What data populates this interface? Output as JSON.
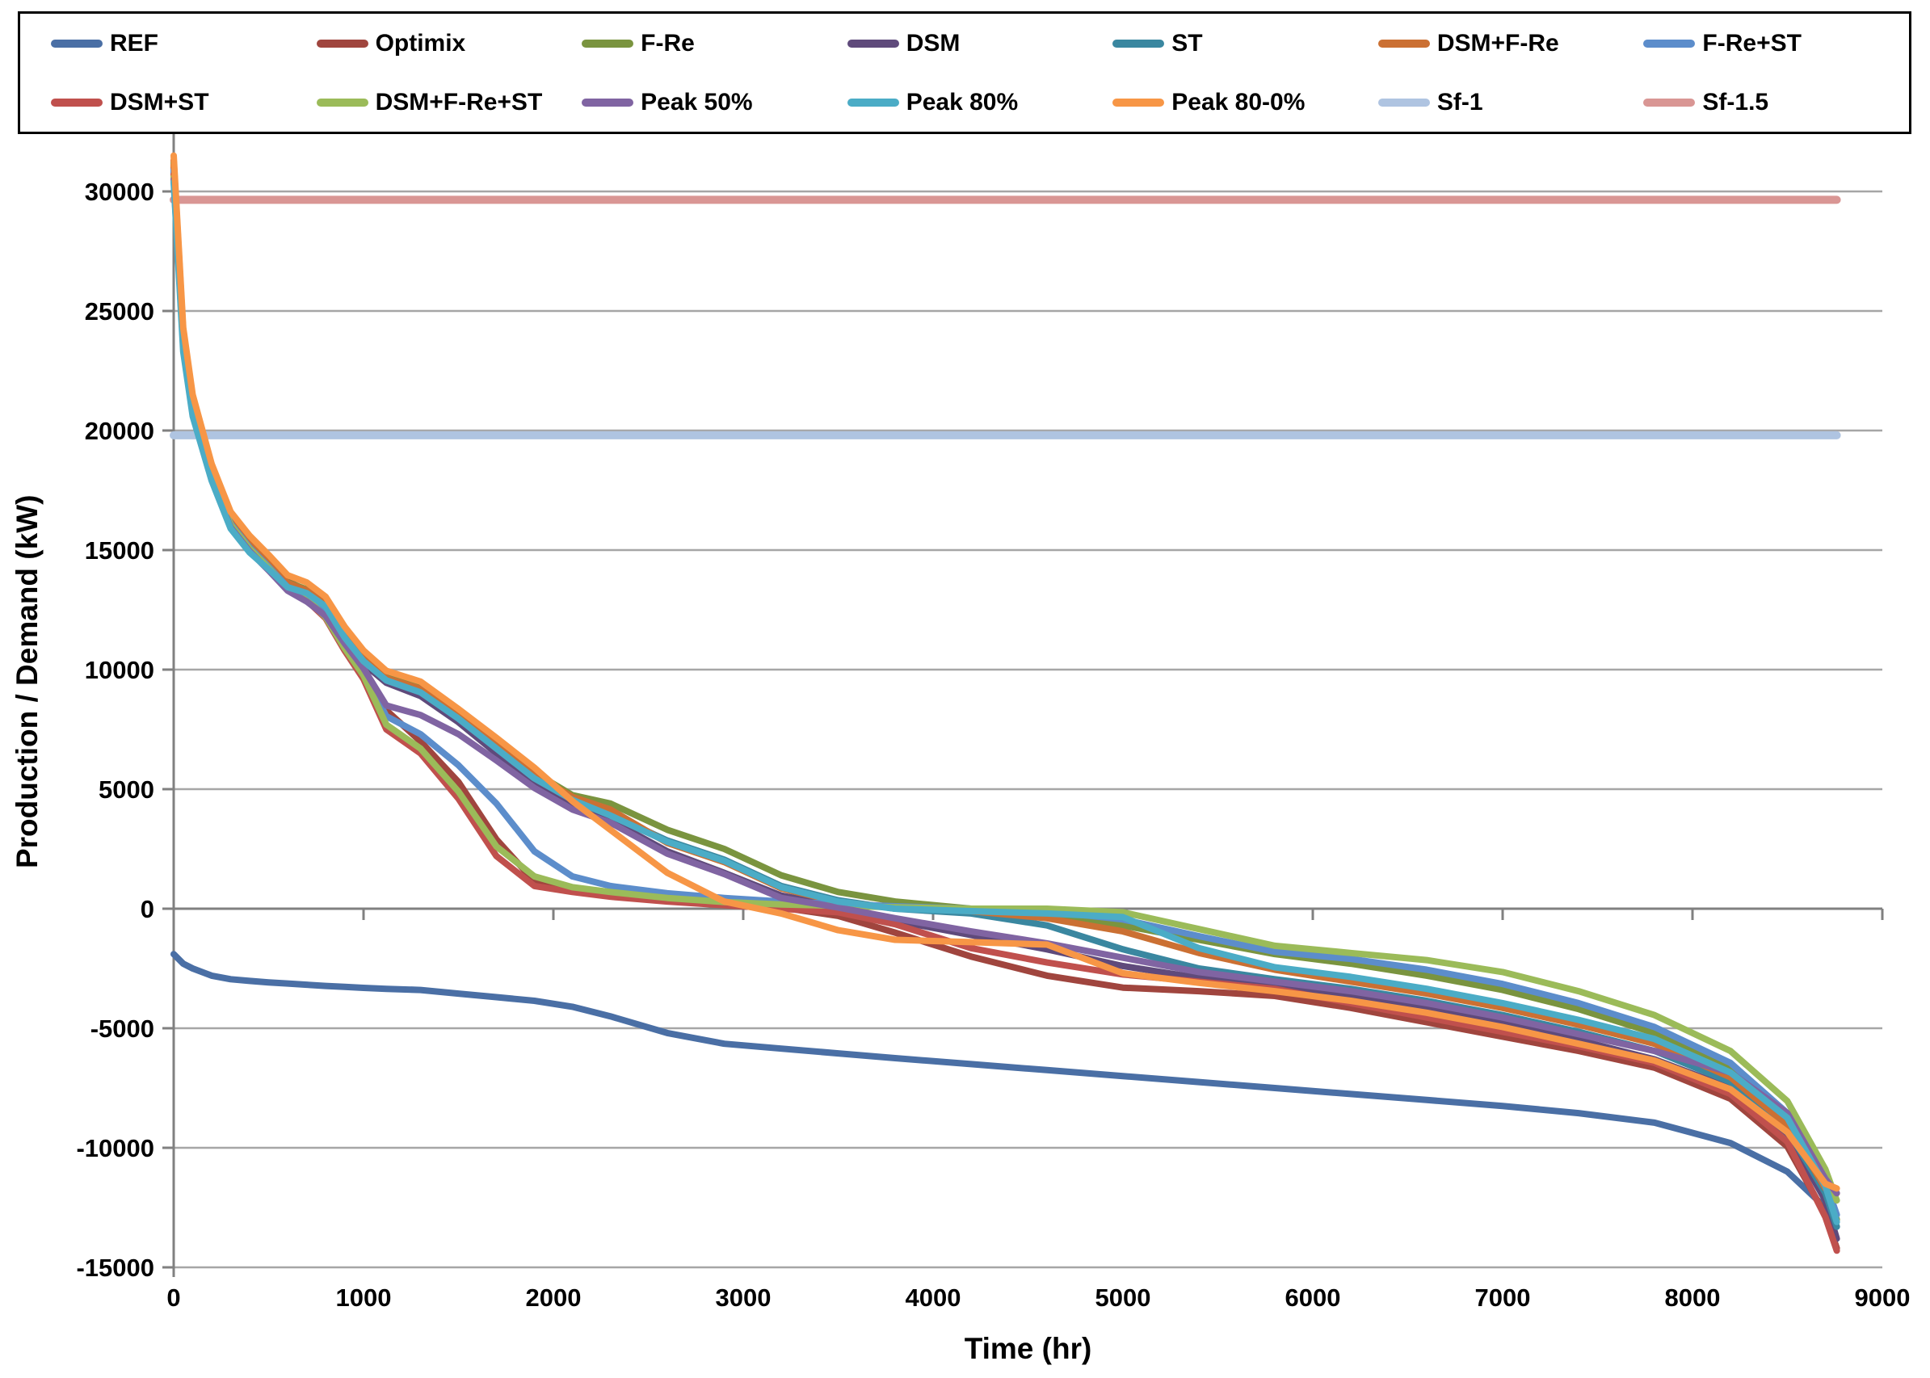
{
  "chart_data": {
    "type": "line",
    "title": "",
    "xlabel": "Time (hr)",
    "ylabel": "Production / Demand (kW)",
    "xlim": [
      0,
      9000
    ],
    "ylim": [
      -15000,
      34000
    ],
    "x_ticks": [
      0,
      1000,
      2000,
      3000,
      4000,
      5000,
      6000,
      7000,
      8000,
      9000
    ],
    "y_ticks": [
      -15000,
      -10000,
      -5000,
      0,
      5000,
      10000,
      15000,
      20000,
      25000,
      30000
    ],
    "grid": "horizontal",
    "legend_position": "top",
    "x_max_data": 8760,
    "x": [
      0,
      50,
      100,
      200,
      300,
      400,
      500,
      600,
      700,
      800,
      900,
      1000,
      1120,
      1300,
      1500,
      1700,
      1900,
      2100,
      2300,
      2600,
      2900,
      3200,
      3500,
      3800,
      4200,
      4600,
      5000,
      5400,
      5800,
      6200,
      6600,
      7000,
      7400,
      7800,
      8200,
      8500,
      8700,
      8760
    ],
    "series": [
      {
        "name": "REF",
        "color": "#4A6FA5",
        "values": [
          -1900,
          -2300,
          -2500,
          -2800,
          -2950,
          -3020,
          -3080,
          -3130,
          -3180,
          -3230,
          -3270,
          -3310,
          -3350,
          -3400,
          -3550,
          -3700,
          -3850,
          -4100,
          -4500,
          -5200,
          -5650,
          -5850,
          -6050,
          -6250,
          -6500,
          -6750,
          -7000,
          -7250,
          -7500,
          -7750,
          -8000,
          -8250,
          -8550,
          -8950,
          -9800,
          -11000,
          -12500,
          -13300
        ]
      },
      {
        "name": "Optimix",
        "color": "#A0453E",
        "values": [
          31300,
          24100,
          21300,
          18400,
          16400,
          15350,
          14550,
          13700,
          13300,
          12600,
          11200,
          10100,
          8300,
          7000,
          5300,
          2900,
          1150,
          850,
          620,
          380,
          220,
          50,
          -300,
          -1000,
          -2000,
          -2800,
          -3300,
          -3450,
          -3650,
          -4150,
          -4750,
          -5350,
          -5950,
          -6650,
          -7950,
          -9950,
          -12800,
          -14200
        ]
      },
      {
        "name": "F-Re",
        "color": "#7A943F",
        "values": [
          31200,
          24000,
          21200,
          18300,
          16300,
          15300,
          14500,
          13650,
          13350,
          12750,
          11500,
          10500,
          9750,
          9300,
          8150,
          6950,
          5700,
          4750,
          4400,
          3300,
          2500,
          1400,
          700,
          300,
          0,
          -300,
          -700,
          -1300,
          -1900,
          -2300,
          -2800,
          -3400,
          -4200,
          -5200,
          -6700,
          -8800,
          -11600,
          -13000
        ]
      },
      {
        "name": "DSM",
        "color": "#5F4A7B",
        "values": [
          31000,
          23800,
          21000,
          18150,
          16150,
          15150,
          14350,
          13500,
          13150,
          12550,
          11300,
          10250,
          9450,
          8900,
          7800,
          6500,
          5250,
          4350,
          3700,
          2400,
          1500,
          550,
          100,
          -500,
          -1100,
          -1700,
          -2400,
          -2900,
          -3200,
          -3600,
          -4200,
          -4800,
          -5500,
          -6300,
          -7500,
          -9400,
          -12200,
          -13800
        ]
      },
      {
        "name": "ST",
        "color": "#3A87A0",
        "values": [
          30800,
          23900,
          21100,
          18250,
          16250,
          15250,
          14450,
          13600,
          13300,
          12700,
          11400,
          10400,
          9600,
          9100,
          8000,
          6750,
          5500,
          4600,
          3950,
          2850,
          2050,
          950,
          350,
          0,
          -200,
          -700,
          -1700,
          -2500,
          -2950,
          -3350,
          -3850,
          -4450,
          -5150,
          -5950,
          -7250,
          -9250,
          -11900,
          -13300
        ]
      },
      {
        "name": "DSM+F-Re",
        "color": "#CB7033",
        "values": [
          31100,
          23950,
          21150,
          18280,
          16280,
          15280,
          14480,
          13630,
          13320,
          12730,
          11450,
          10450,
          9650,
          9200,
          8080,
          6850,
          5600,
          4680,
          4150,
          2750,
          1950,
          850,
          280,
          30,
          -100,
          -400,
          -950,
          -1850,
          -2550,
          -3050,
          -3550,
          -4150,
          -4850,
          -5650,
          -7050,
          -9050,
          -11700,
          -11900
        ]
      },
      {
        "name": "F-Re+ST",
        "color": "#5C8DCB",
        "values": [
          30900,
          23700,
          20900,
          18100,
          16100,
          15100,
          14300,
          13450,
          13000,
          12300,
          11000,
          9900,
          8050,
          7300,
          6000,
          4400,
          2400,
          1350,
          950,
          650,
          450,
          300,
          200,
          100,
          0,
          -100,
          -450,
          -1150,
          -1800,
          -2100,
          -2550,
          -3150,
          -3950,
          -4950,
          -6450,
          -8550,
          -11400,
          -12800
        ]
      },
      {
        "name": "DSM+ST",
        "color": "#C0504D",
        "values": [
          30700,
          23600,
          20800,
          18000,
          16000,
          15000,
          14200,
          13350,
          12900,
          12150,
          10800,
          9600,
          7500,
          6500,
          4600,
          2200,
          950,
          700,
          500,
          300,
          150,
          0,
          -150,
          -650,
          -1650,
          -2250,
          -2750,
          -3050,
          -3350,
          -3950,
          -4550,
          -5150,
          -5750,
          -6450,
          -7750,
          -9750,
          -12900,
          -14300
        ]
      },
      {
        "name": "DSM+F-Re+ST",
        "color": "#9BBB59",
        "values": [
          30600,
          23650,
          20850,
          18050,
          16050,
          15050,
          14250,
          13400,
          12950,
          12200,
          10900,
          9750,
          7700,
          6700,
          4900,
          2600,
          1350,
          900,
          700,
          450,
          280,
          180,
          120,
          60,
          0,
          0,
          -150,
          -850,
          -1550,
          -1850,
          -2150,
          -2650,
          -3450,
          -4450,
          -5950,
          -8050,
          -10900,
          -12200
        ]
      },
      {
        "name": "Peak 50%",
        "color": "#8064A2",
        "values": [
          30500,
          23500,
          20700,
          17950,
          15950,
          14950,
          14150,
          13300,
          12850,
          12250,
          11100,
          10050,
          8500,
          8100,
          7300,
          6200,
          5050,
          4150,
          3600,
          2300,
          1450,
          450,
          50,
          -400,
          -950,
          -1450,
          -2050,
          -2650,
          -3050,
          -3450,
          -3950,
          -4550,
          -5250,
          -5950,
          -6850,
          -8550,
          -11300,
          -11900
        ]
      },
      {
        "name": "Peak 80%",
        "color": "#4BACC6",
        "values": [
          30400,
          23300,
          20600,
          17900,
          15900,
          14900,
          14200,
          13450,
          13200,
          12650,
          11350,
          10350,
          9550,
          9050,
          7950,
          6700,
          5450,
          4550,
          3900,
          2800,
          2000,
          900,
          300,
          0,
          -100,
          -200,
          -350,
          -1650,
          -2450,
          -2850,
          -3350,
          -3950,
          -4650,
          -5450,
          -6850,
          -8750,
          -11600,
          -13100
        ]
      },
      {
        "name": "Peak 80-0%",
        "color": "#F79646",
        "values": [
          31500,
          24300,
          21500,
          18600,
          16600,
          15600,
          14800,
          13950,
          13650,
          13050,
          11800,
          10800,
          9950,
          9500,
          8350,
          7150,
          5900,
          4500,
          3300,
          1500,
          300,
          -200,
          -900,
          -1300,
          -1400,
          -1500,
          -2700,
          -3100,
          -3450,
          -3850,
          -4350,
          -4950,
          -5650,
          -6350,
          -7550,
          -9350,
          -11500,
          -11700
        ]
      },
      {
        "name": "Sf-1",
        "color": "#AFC4E1",
        "const": 19800
      },
      {
        "name": "Sf-1.5",
        "color": "#D99694",
        "const": 29650
      }
    ]
  }
}
